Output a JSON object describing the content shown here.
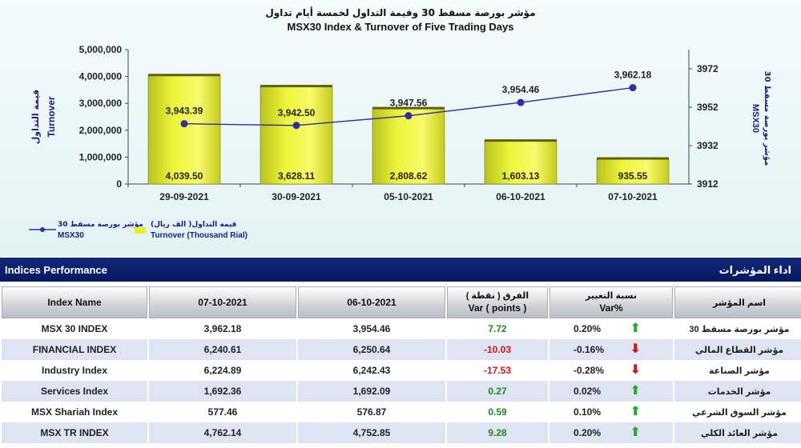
{
  "chart_data": {
    "type": "bar+line",
    "title_ar": "مؤشر بورصة مسقط 30 وقيمة التداول لخمسة أيام تداول",
    "title": "MSX30 Index & Turnover of Five Trading Days",
    "categories": [
      "29-09-2021",
      "30-09-2021",
      "05-10-2021",
      "06-10-2021",
      "07-10-2021"
    ],
    "bar_series": {
      "name_ar": "قيمة التداول( الف ريال)",
      "name": "Turnover (Thousand Rial)",
      "values": [
        4039.5,
        3628.11,
        2808.62,
        1603.13,
        935.55
      ],
      "value_labels": [
        "4,039.50",
        "3,628.11",
        "2,808.62",
        "1,603.13",
        "935.55"
      ],
      "color": "#e8f02a"
    },
    "line_series": {
      "name_ar": "مؤشر بورصة مسقط 30",
      "name": "MSX30",
      "values": [
        3943.39,
        3942.5,
        3947.56,
        3954.46,
        3962.18
      ],
      "value_labels": [
        "3,943.39",
        "3,942.50",
        "3,947.56",
        "3,954.46",
        "3,962.18"
      ],
      "color": "#2e2ea8"
    },
    "left_axis": {
      "label_ar": "قيمة التداول",
      "label": "Turnover",
      "ticks": [
        "0",
        "1,000,000",
        "2,000,000",
        "3,000,000",
        "4,000,000",
        "5,000,000"
      ],
      "range": [
        0,
        5000000
      ]
    },
    "right_axis": {
      "label_ar": "مؤشر بورصة مسقط 30",
      "label": "MSX30",
      "ticks": [
        "3912",
        "3932",
        "3952",
        "3972"
      ],
      "range": [
        3912,
        3982
      ]
    }
  },
  "table": {
    "title": "Indices Performance",
    "title_ar": "اداء المؤشرات",
    "headers": {
      "index_name": "Index Name",
      "date1": "07-10-2021",
      "date2": "06-10-2021",
      "var_points_ar": "الفرق ( نقطة )",
      "var_points": "Var ( points )",
      "var_pct_ar": "نسبة التغيير",
      "var_pct": "Var%",
      "name_ar": "اسم المؤشر"
    },
    "rows": [
      {
        "name": "MSX 30 INDEX",
        "v1": "3,962.18",
        "v2": "3,954.46",
        "var": "7.72",
        "pct": "0.20%",
        "dir": "up",
        "name_ar": "مؤشر بورصة مسقط 30"
      },
      {
        "name": "FINANCIAL INDEX",
        "v1": "6,240.61",
        "v2": "6,250.64",
        "var": "-10.03",
        "pct": "-0.16%",
        "dir": "down",
        "name_ar": "مؤشر القطاع المالي"
      },
      {
        "name": "Industry Index",
        "v1": "6,224.89",
        "v2": "6,242.43",
        "var": "-17.53",
        "pct": "-0.28%",
        "dir": "down",
        "name_ar": "مؤشر الصناعة"
      },
      {
        "name": "Services Index",
        "v1": "1,692.36",
        "v2": "1,692.09",
        "var": "0.27",
        "pct": "0.02%",
        "dir": "up",
        "name_ar": "مؤشر الخدمات"
      },
      {
        "name": "MSX Shariah Index",
        "v1": "577.46",
        "v2": "576.87",
        "var": "0.59",
        "pct": "0.10%",
        "dir": "up",
        "name_ar": "مؤشر السوق الشرعي"
      },
      {
        "name": "MSX TR INDEX",
        "v1": "4,762.14",
        "v2": "4,752.85",
        "var": "9.28",
        "pct": "0.20%",
        "dir": "up",
        "name_ar": "مؤشر العائد الكلي"
      }
    ]
  }
}
